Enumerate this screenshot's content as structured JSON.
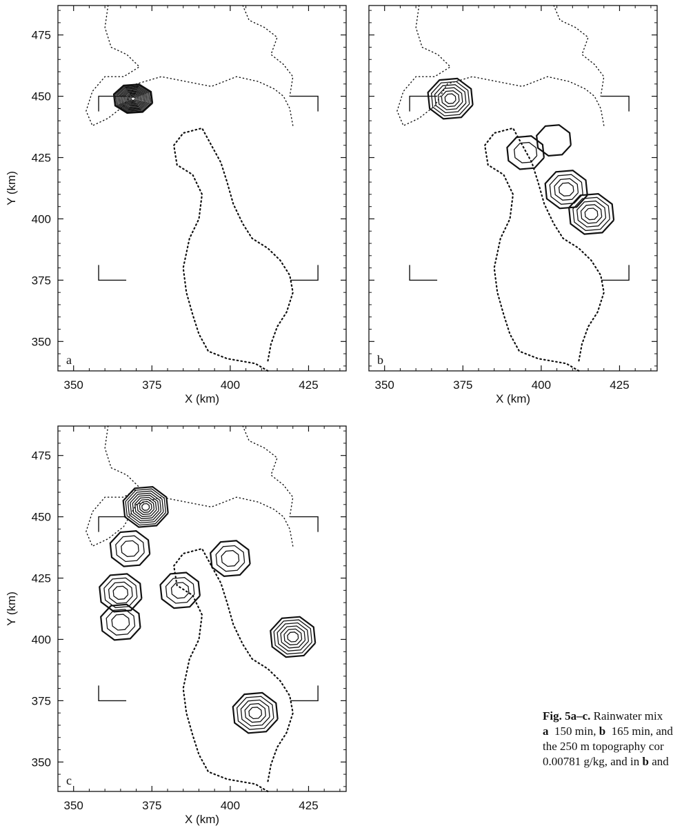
{
  "figure": {
    "panels": [
      {
        "id": "a",
        "letter": "a",
        "xlabel": "X (km)",
        "ylabel": "Y (km)",
        "x_ticks": [
          "350",
          "375",
          "400",
          "425"
        ],
        "y_ticks": [
          "475",
          "450",
          "425",
          "400",
          "375",
          "350"
        ]
      },
      {
        "id": "b",
        "letter": "b",
        "xlabel": "X (km)",
        "ylabel": "",
        "x_ticks": [
          "350",
          "375",
          "400",
          "425"
        ],
        "y_ticks": []
      },
      {
        "id": "c",
        "letter": "c",
        "xlabel": "X (km)",
        "ylabel": "Y (km)",
        "x_ticks": [
          "350",
          "375",
          "400",
          "425"
        ],
        "y_ticks": [
          "475",
          "450",
          "425",
          "400",
          "375",
          "350"
        ]
      }
    ],
    "caption": {
      "label": "Fig. 5a–c.",
      "line1": "Rainwater mix",
      "line2_a": "a",
      "line2_a_text": "150 min,",
      "line2_b": "b",
      "line2_b_text": "165 min, and",
      "line3": "the 250 m topography cor",
      "line4_pre": "0.00781 g/kg, and in",
      "line4_b": "b",
      "line4_post": "and"
    }
  },
  "chart_data": [
    {
      "type": "contour",
      "panel": "a",
      "xlabel": "X (km)",
      "ylabel": "Y (km)",
      "xlim": [
        345,
        437
      ],
      "ylim": [
        338,
        487
      ],
      "rain_cells": [
        {
          "x": 369,
          "y": 449,
          "contour_count": 14
        }
      ],
      "brackets_km": {
        "x": [
          358,
          428
        ],
        "y": [
          375,
          450
        ]
      }
    },
    {
      "type": "contour",
      "panel": "b",
      "xlabel": "X (km)",
      "ylabel": "",
      "xlim": [
        345,
        437
      ],
      "ylim": [
        338,
        487
      ],
      "rain_cells": [
        {
          "x": 371,
          "y": 449,
          "contour_count": 6
        },
        {
          "x": 395,
          "y": 427,
          "contour_count": 2
        },
        {
          "x": 404,
          "y": 432,
          "contour_count": 1
        },
        {
          "x": 408,
          "y": 412,
          "contour_count": 4
        },
        {
          "x": 416,
          "y": 402,
          "contour_count": 5
        }
      ],
      "brackets_km": {
        "x": [
          358,
          428
        ],
        "y": [
          375,
          450
        ]
      }
    },
    {
      "type": "contour",
      "panel": "c",
      "xlabel": "X (km)",
      "ylabel": "Y (km)",
      "xlim": [
        345,
        437
      ],
      "ylim": [
        338,
        487
      ],
      "rain_cells": [
        {
          "x": 373,
          "y": 454,
          "contour_count": 9
        },
        {
          "x": 368,
          "y": 437,
          "contour_count": 3
        },
        {
          "x": 365,
          "y": 419,
          "contour_count": 4
        },
        {
          "x": 365,
          "y": 407,
          "contour_count": 3
        },
        {
          "x": 384,
          "y": 420,
          "contour_count": 3
        },
        {
          "x": 400,
          "y": 433,
          "contour_count": 3
        },
        {
          "x": 420,
          "y": 401,
          "contour_count": 6
        },
        {
          "x": 408,
          "y": 370,
          "contour_count": 5
        }
      ],
      "brackets_km": {
        "x": [
          358,
          428
        ],
        "y": [
          375,
          450
        ]
      }
    }
  ]
}
